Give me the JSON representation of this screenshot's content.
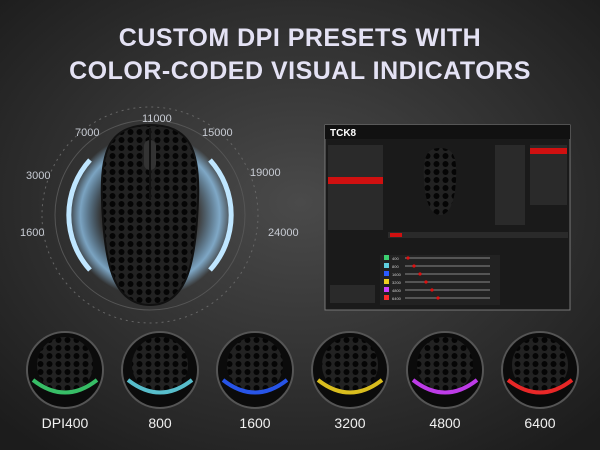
{
  "header": {
    "title_lines": [
      "CUSTOM DPI PRESETS WITH",
      "COLOR-CODED VISUAL INDICATORS"
    ]
  },
  "dial": {
    "labels": [
      "1600",
      "3000",
      "7000",
      "11000",
      "15000",
      "19000",
      "24000"
    ]
  },
  "software": {
    "logo": "TCK8",
    "dpi_rows": [
      "400",
      "800",
      "1600",
      "3200",
      "4800",
      "6400"
    ]
  },
  "presets": [
    {
      "label": "DPI400",
      "color": "#3cd070"
    },
    {
      "label": "800",
      "color": "#5fd0e0"
    },
    {
      "label": "1600",
      "color": "#2a5cff"
    },
    {
      "label": "3200",
      "color": "#f0d020"
    },
    {
      "label": "4800",
      "color": "#d040ff"
    },
    {
      "label": "6400",
      "color": "#ff2a2a"
    }
  ]
}
